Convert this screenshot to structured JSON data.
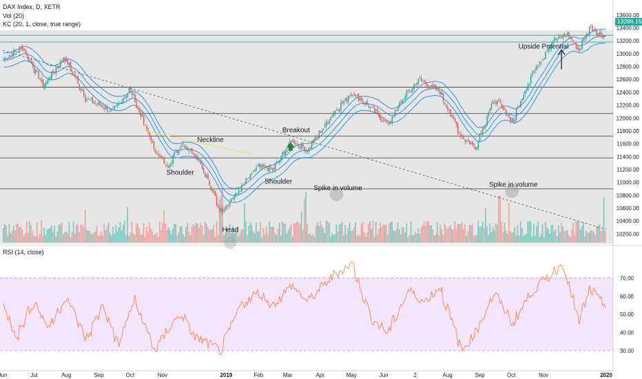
{
  "header": {
    "symbol_line": "DAX Index, D, XETR",
    "vol_line": "Vol (20)",
    "kc_line": "KC (20, 1, close, true range)",
    "rsi_line": "RSI (14, close)"
  },
  "last_price_label": "13286.15",
  "colors": {
    "up": "#26a69a",
    "down": "#ef5350",
    "vol_up": "#7fc8be",
    "vol_down": "#f2a3a1",
    "keltner": "#2196f3",
    "rsi_line": "#ff8a50",
    "rsi_band": "#f3e5fc",
    "neckline": "#e8e36a",
    "trendline": "#555555",
    "panel_bg": "#e6e6e6",
    "hline": "#333333",
    "highlight": "#26a69a"
  },
  "chart_data": {
    "type": "candlestick",
    "title": "DAX Index, D, XETR",
    "price_axis": {
      "ticks": [
        10200,
        10400,
        10600,
        10800,
        11000,
        11200,
        11400,
        11600,
        11800,
        12000,
        12200,
        12400,
        12600,
        12800,
        13000,
        13200,
        13400,
        13600
      ],
      "tick_labels": [
        "10200.00",
        "10400.00",
        "10600.00",
        "10800.00",
        "11000.00",
        "11200.00",
        "11400.00",
        "11600.00",
        "11800.00",
        "12000.00",
        "12200.00",
        "12400.00",
        "12600.00",
        "12800.00",
        "13000.00",
        "13200.00",
        "13400.00",
        "13600.00"
      ],
      "ylim": [
        10150,
        13620
      ]
    },
    "rsi_axis": {
      "ticks": [
        30,
        40,
        50,
        60,
        70
      ],
      "tick_labels": [
        "30.00",
        "40.00",
        "50.00",
        "60.00",
        "70.00"
      ],
      "ylim": [
        25,
        82
      ],
      "band": [
        30,
        70
      ]
    },
    "x_axis": {
      "ticks": [
        "Jun",
        "Jul",
        "Aug",
        "Sep",
        "Oct",
        "Nov",
        "2019",
        "Feb",
        "Mar",
        "Apr",
        "May",
        "Jun",
        "2",
        "Aug",
        "Sep",
        "Oct",
        "Nov",
        "2020"
      ],
      "range": [
        "2018-06-01",
        "2019-12-31"
      ]
    },
    "horizontal_lines": [
      13180,
      12480,
      12070,
      11720,
      11380,
      10900
    ],
    "diagonal_trendline": {
      "from": [
        "2018-06-01",
        13050
      ],
      "to": [
        "2019-12-31",
        10270
      ]
    },
    "neckline": {
      "from": [
        "2018-10-15",
        11800
      ],
      "to": [
        "2019-01-28",
        11430
      ]
    },
    "key_points": [
      [
        "2018-06-01",
        12900
      ],
      [
        "2018-06-20",
        13100
      ],
      [
        "2018-07-10",
        12500
      ],
      [
        "2018-07-30",
        12950
      ],
      [
        "2018-08-20",
        12300
      ],
      [
        "2018-09-15",
        12100
      ],
      [
        "2018-10-01",
        12450
      ],
      [
        "2018-10-25",
        11500
      ],
      [
        "2018-11-05",
        11250
      ],
      [
        "2018-11-20",
        11600
      ],
      [
        "2018-12-05",
        11400
      ],
      [
        "2018-12-27",
        10550
      ],
      [
        "2019-01-10",
        10800
      ],
      [
        "2019-02-01",
        11250
      ],
      [
        "2019-02-15",
        11200
      ],
      [
        "2019-03-05",
        11650
      ],
      [
        "2019-03-20",
        11500
      ],
      [
        "2019-04-15",
        12100
      ],
      [
        "2019-05-02",
        12400
      ],
      [
        "2019-05-20",
        12150
      ],
      [
        "2019-06-05",
        11900
      ],
      [
        "2019-06-20",
        12300
      ],
      [
        "2019-07-05",
        12600
      ],
      [
        "2019-07-25",
        12400
      ],
      [
        "2019-08-15",
        11700
      ],
      [
        "2019-08-28",
        11550
      ],
      [
        "2019-09-15",
        12300
      ],
      [
        "2019-10-03",
        11950
      ],
      [
        "2019-10-20",
        12650
      ],
      [
        "2019-11-10",
        13200
      ],
      [
        "2019-11-25",
        13300
      ],
      [
        "2019-12-05",
        13050
      ],
      [
        "2019-12-16",
        13420
      ],
      [
        "2019-12-27",
        13286
      ]
    ],
    "rsi_key_points": [
      [
        "2018-06-01",
        55
      ],
      [
        "2018-06-15",
        38
      ],
      [
        "2018-07-01",
        58
      ],
      [
        "2018-07-15",
        42
      ],
      [
        "2018-08-01",
        60
      ],
      [
        "2018-08-20",
        36
      ],
      [
        "2018-09-05",
        55
      ],
      [
        "2018-09-20",
        33
      ],
      [
        "2018-10-05",
        58
      ],
      [
        "2018-10-25",
        30
      ],
      [
        "2018-11-10",
        45
      ],
      [
        "2018-11-20",
        50
      ],
      [
        "2018-12-01",
        38
      ],
      [
        "2018-12-27",
        30
      ],
      [
        "2019-01-15",
        55
      ],
      [
        "2019-02-01",
        62
      ],
      [
        "2019-02-15",
        55
      ],
      [
        "2019-03-05",
        66
      ],
      [
        "2019-03-20",
        57
      ],
      [
        "2019-04-15",
        72
      ],
      [
        "2019-05-02",
        78
      ],
      [
        "2019-05-20",
        48
      ],
      [
        "2019-06-05",
        40
      ],
      [
        "2019-06-25",
        63
      ],
      [
        "2019-07-10",
        57
      ],
      [
        "2019-07-25",
        65
      ],
      [
        "2019-08-15",
        30
      ],
      [
        "2019-08-28",
        40
      ],
      [
        "2019-09-15",
        62
      ],
      [
        "2019-10-03",
        45
      ],
      [
        "2019-10-20",
        62
      ],
      [
        "2019-11-10",
        73
      ],
      [
        "2019-11-20",
        78
      ],
      [
        "2019-12-05",
        46
      ],
      [
        "2019-12-16",
        64
      ],
      [
        "2019-12-27",
        56
      ]
    ],
    "annotations": [
      {
        "text": "Shoulder",
        "at": [
          "2018-11-18",
          11120
        ]
      },
      {
        "text": "Head",
        "at": [
          "2019-01-05",
          10230
        ]
      },
      {
        "text": "Shoulder",
        "at": [
          "2019-02-20",
          10980
        ]
      },
      {
        "text": "Neckline",
        "at": [
          "2018-12-17",
          11630
        ]
      },
      {
        "text": "Breakout",
        "at": [
          "2019-03-09",
          11780
        ]
      },
      {
        "text": "Spike in volume",
        "at": [
          "2019-04-18",
          10880
        ]
      },
      {
        "text": "Spike in volume",
        "at": [
          "2019-10-03",
          10930
        ]
      },
      {
        "text": "Upside Potential",
        "at": [
          "2019-11-01",
          13080
        ]
      }
    ],
    "volume_spikes": [
      "2018-12-27",
      "2019-03-18",
      "2019-09-20"
    ],
    "last_price": 13286.15,
    "legend_placement": "top-left"
  }
}
